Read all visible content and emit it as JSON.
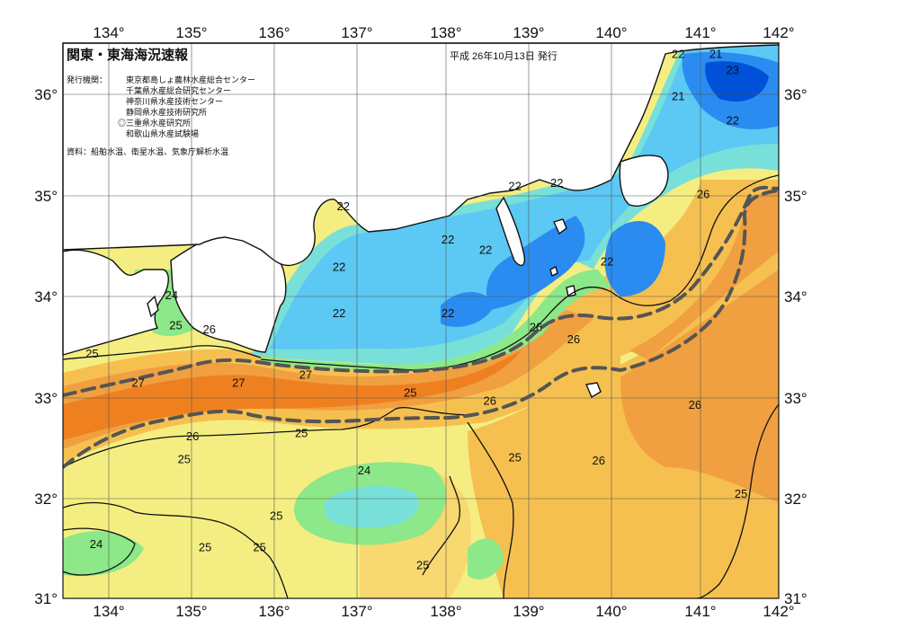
{
  "title": "関東・東海海況速報",
  "issue_date": "平成 26年10月13日 発行",
  "agencies_label": "発行機関：",
  "agencies": [
    "東京都島しょ農林水産総合センター",
    "千葉県水産総合研究センター",
    "神奈川県水産技術センター",
    "静岡県水産技術研究所",
    "◎三重県水産研究所",
    "和歌山県水産試験場"
  ],
  "source_note": "資料：船舶水温、衛星水温、気象庁解析水温",
  "lon_ticks": [
    "134°",
    "135°",
    "136°",
    "137°",
    "138°",
    "139°",
    "140°",
    "141°",
    "142°"
  ],
  "lat_ticks_left": [
    "36°",
    "35°",
    "34°",
    "33°",
    "32°",
    "31°"
  ],
  "lat_ticks_right": [
    "36°",
    "35°",
    "34°",
    "33°",
    "32°",
    "31°"
  ],
  "isotherm_labels": [
    {
      "text": "22",
      "lon": 140.8,
      "lat": 36.36
    },
    {
      "text": "21",
      "lon": 141.25,
      "lat": 36.36
    },
    {
      "text": "23",
      "lon": 141.45,
      "lat": 36.2
    },
    {
      "text": "21",
      "lon": 140.8,
      "lat": 35.94
    },
    {
      "text": "22",
      "lon": 141.45,
      "lat": 35.7
    },
    {
      "text": "22",
      "lon": 138.85,
      "lat": 35.05
    },
    {
      "text": "22",
      "lon": 139.35,
      "lat": 35.08
    },
    {
      "text": "26",
      "lon": 141.1,
      "lat": 34.97
    },
    {
      "text": "22",
      "lon": 136.8,
      "lat": 34.85
    },
    {
      "text": "22",
      "lon": 138.05,
      "lat": 34.52
    },
    {
      "text": "22",
      "lon": 138.5,
      "lat": 34.42
    },
    {
      "text": "22",
      "lon": 136.75,
      "lat": 34.25
    },
    {
      "text": "22",
      "lon": 139.95,
      "lat": 34.3
    },
    {
      "text": "24",
      "lon": 134.75,
      "lat": 33.97
    },
    {
      "text": "22",
      "lon": 136.75,
      "lat": 33.79
    },
    {
      "text": "22",
      "lon": 138.05,
      "lat": 33.79
    },
    {
      "text": "25",
      "lon": 134.8,
      "lat": 33.67
    },
    {
      "text": "26",
      "lon": 135.2,
      "lat": 33.63
    },
    {
      "text": "26",
      "lon": 139.1,
      "lat": 33.65
    },
    {
      "text": "26",
      "lon": 139.55,
      "lat": 33.53
    },
    {
      "text": "25",
      "lon": 133.8,
      "lat": 33.39
    },
    {
      "text": "27",
      "lon": 134.35,
      "lat": 33.1
    },
    {
      "text": "27",
      "lon": 135.55,
      "lat": 33.1
    },
    {
      "text": "27",
      "lon": 136.35,
      "lat": 33.18
    },
    {
      "text": "25",
      "lon": 137.6,
      "lat": 33.0
    },
    {
      "text": "26",
      "lon": 138.55,
      "lat": 32.92
    },
    {
      "text": "26",
      "lon": 141.0,
      "lat": 32.88
    },
    {
      "text": "25",
      "lon": 136.3,
      "lat": 32.6
    },
    {
      "text": "26",
      "lon": 135.0,
      "lat": 32.57
    },
    {
      "text": "25",
      "lon": 134.9,
      "lat": 32.34
    },
    {
      "text": "25",
      "lon": 138.85,
      "lat": 32.36
    },
    {
      "text": "26",
      "lon": 139.85,
      "lat": 32.33
    },
    {
      "text": "24",
      "lon": 137.05,
      "lat": 32.23
    },
    {
      "text": "25",
      "lon": 141.55,
      "lat": 32.0
    },
    {
      "text": "25",
      "lon": 136.0,
      "lat": 31.78
    },
    {
      "text": "24",
      "lon": 133.85,
      "lat": 31.5
    },
    {
      "text": "25",
      "lon": 135.15,
      "lat": 31.47
    },
    {
      "text": "25",
      "lon": 135.8,
      "lat": 31.47
    },
    {
      "text": "25",
      "lon": 137.75,
      "lat": 31.29
    }
  ],
  "colors": {
    "water_19": "#0050d8",
    "water_21": "#2a8cf0",
    "water_22": "#5cc8f4",
    "water_23": "#78e0d8",
    "water_24": "#8ce888",
    "water_25": "#f4ee82",
    "water_25_5": "#f8d870",
    "water_26": "#f6c050",
    "water_27": "#f0a040",
    "water_28": "#ee8020",
    "land": "#ffffff",
    "kuroshio_axis": "#555555"
  }
}
